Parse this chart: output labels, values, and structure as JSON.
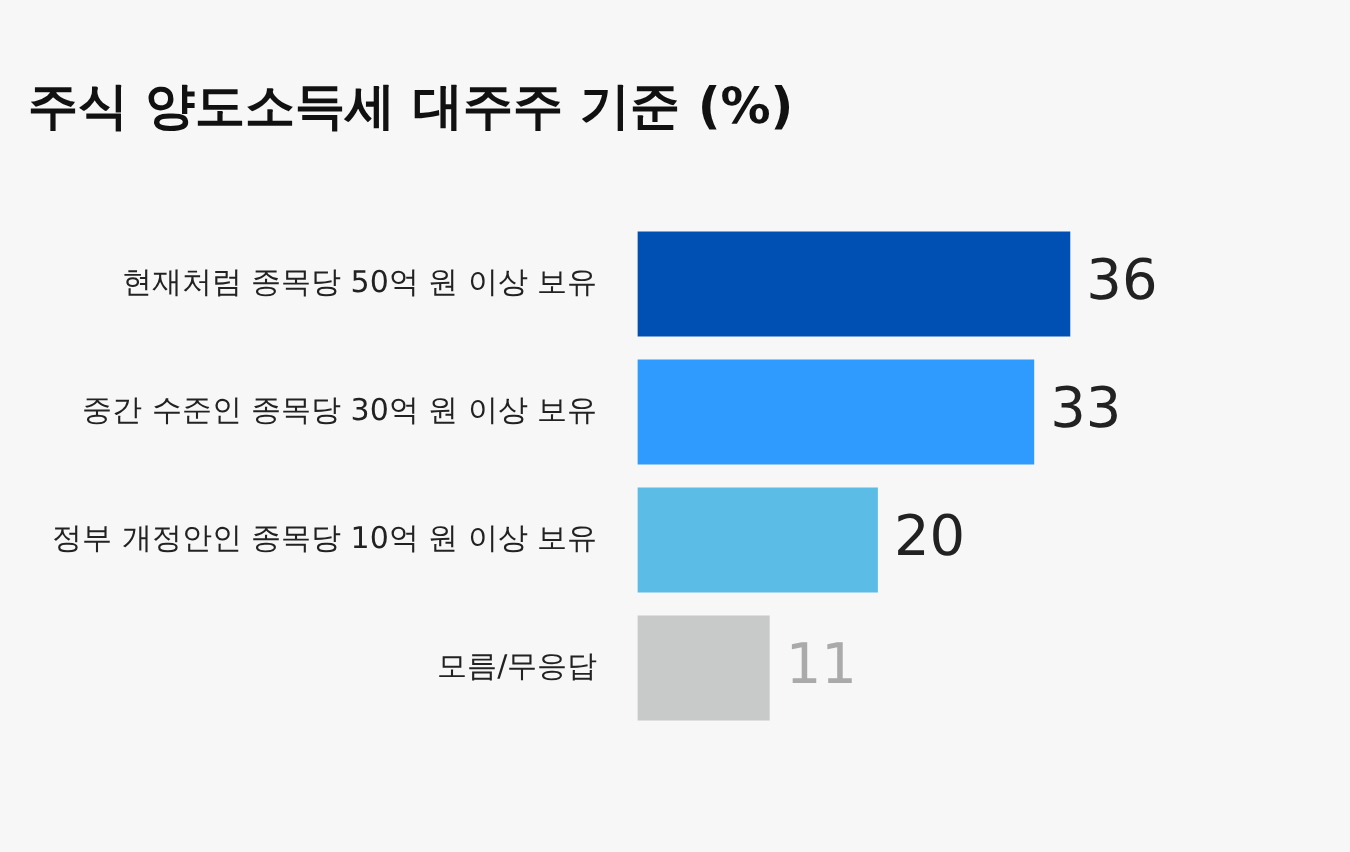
{
  "chart_data": {
    "type": "bar",
    "orientation": "horizontal",
    "title": "주식 양도소득세 대주주 기준 (%)",
    "categories": [
      "현재처럼 종목당 50억 원 이상 보유",
      "중간 수준인 종목당 30억 원 이상 보유",
      "정부 개정안인 종목당 10억 원 이상 보유",
      "모름/무응답"
    ],
    "values": [
      36,
      33,
      20,
      11
    ],
    "colors": [
      "#0050b4",
      "#2f9bff",
      "#5bbde6",
      "#c8c9c9"
    ],
    "data_labels": true
  }
}
